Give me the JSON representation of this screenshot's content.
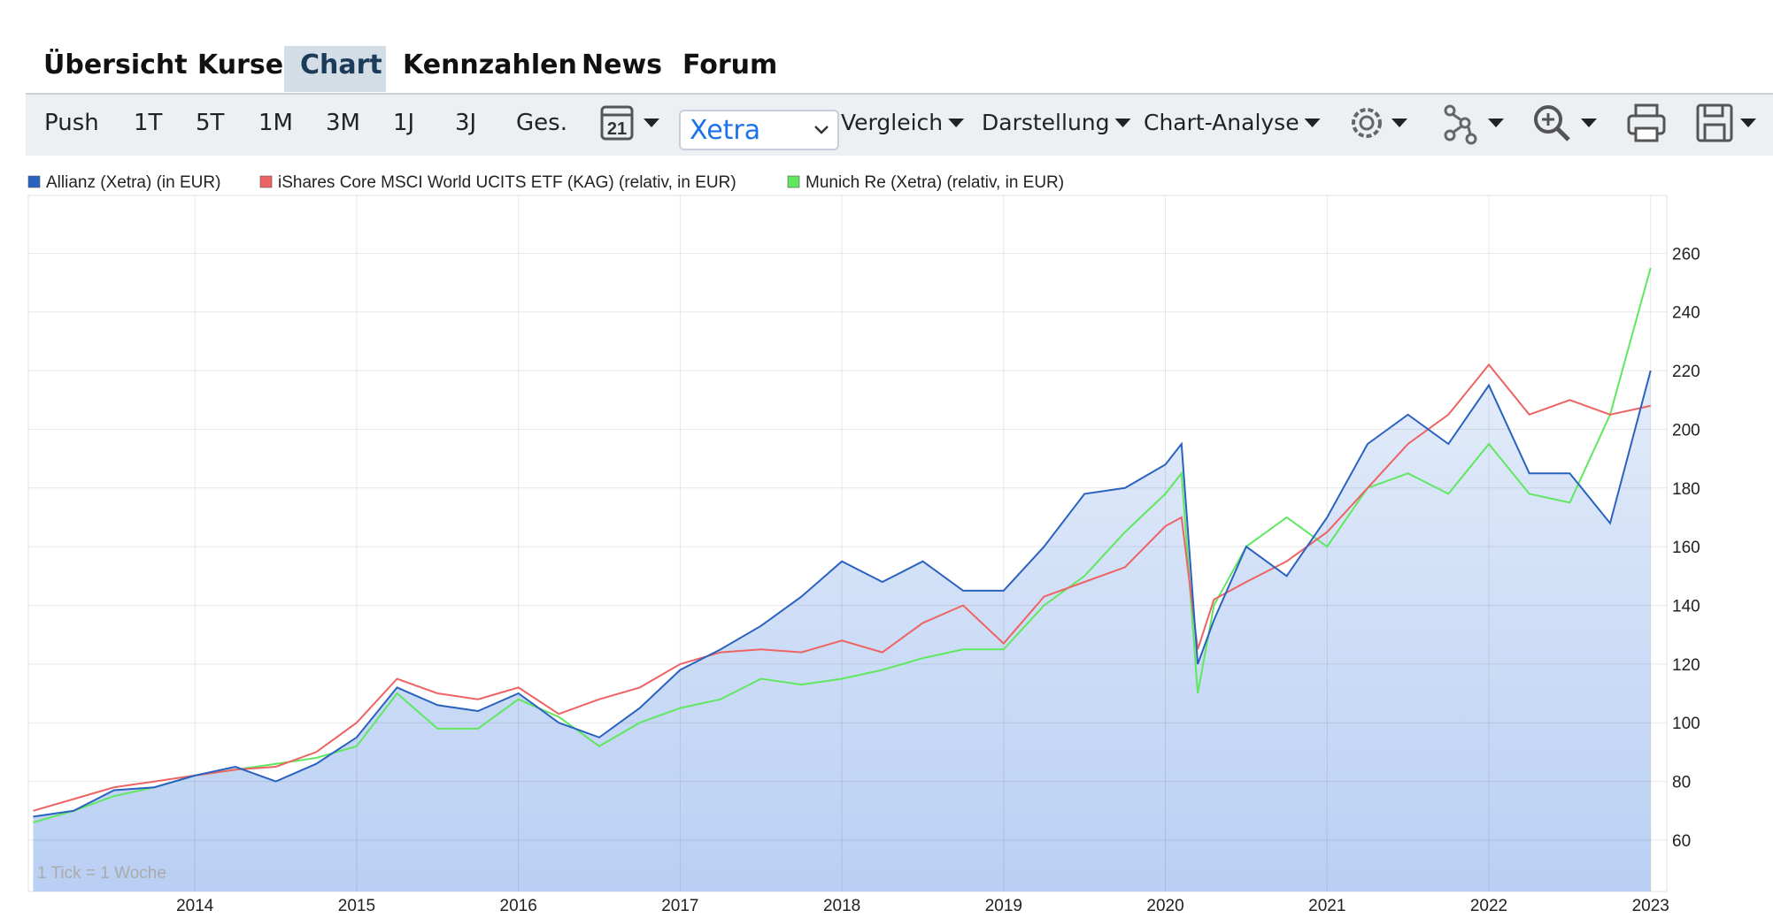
{
  "tabs": {
    "items": [
      "Übersicht",
      "Kurse",
      "Chart",
      "Kennzahlen",
      "News",
      "Forum"
    ],
    "active": 2
  },
  "toolbar": {
    "ranges": [
      "Push",
      "1T",
      "5T",
      "1M",
      "3M",
      "1J",
      "3J",
      "Ges."
    ],
    "calendar": "21",
    "exchange": "Xetra",
    "menus": [
      "Vergleich",
      "Darstellung",
      "Chart-Analyse"
    ]
  },
  "chart_data": {
    "type": "line",
    "note": "1 Tick = 1 Woche",
    "x": [
      2013,
      2013.25,
      2013.5,
      2013.75,
      2014,
      2014.25,
      2014.5,
      2014.75,
      2015,
      2015.25,
      2015.5,
      2015.75,
      2016,
      2016.25,
      2016.5,
      2016.75,
      2017,
      2017.25,
      2017.5,
      2017.75,
      2018,
      2018.25,
      2018.5,
      2018.75,
      2019,
      2019.25,
      2019.5,
      2019.75,
      2020,
      2020.1,
      2020.2,
      2020.3,
      2020.5,
      2020.75,
      2021,
      2021.25,
      2021.5,
      2021.75,
      2022,
      2022.25,
      2022.5,
      2022.75,
      2023
    ],
    "series": [
      {
        "name": "Allianz (Xetra) (in EUR)",
        "color": "#2a62c0",
        "area": true,
        "values": [
          68,
          70,
          77,
          78,
          82,
          85,
          80,
          86,
          95,
          112,
          106,
          104,
          110,
          100,
          95,
          105,
          118,
          125,
          133,
          143,
          155,
          148,
          155,
          145,
          145,
          160,
          178,
          180,
          188,
          195,
          120,
          135,
          160,
          150,
          170,
          195,
          205,
          195,
          215,
          185,
          185,
          168,
          220
        ]
      },
      {
        "name": "iShares Core MSCI World UCITS ETF (KAG) (relativ, in EUR)",
        "color": "#ee6363",
        "values": [
          70,
          74,
          78,
          80,
          82,
          84,
          85,
          90,
          100,
          115,
          110,
          108,
          112,
          103,
          108,
          112,
          120,
          124,
          125,
          124,
          128,
          124,
          134,
          140,
          127,
          143,
          148,
          153,
          167,
          170,
          125,
          142,
          148,
          155,
          165,
          180,
          195,
          205,
          222,
          205,
          210,
          205,
          208
        ]
      },
      {
        "name": "Munich Re (Xetra) (relativ, in EUR)",
        "color": "#5fe85f",
        "values": [
          66,
          70,
          75,
          78,
          82,
          84,
          86,
          88,
          92,
          110,
          98,
          98,
          108,
          102,
          92,
          100,
          105,
          108,
          115,
          113,
          115,
          118,
          122,
          125,
          125,
          140,
          150,
          165,
          178,
          185,
          110,
          140,
          160,
          170,
          160,
          180,
          185,
          178,
          195,
          178,
          175,
          205,
          255
        ]
      }
    ],
    "xlim": [
      2012.97,
      2023.1
    ],
    "xticks": [
      2014,
      2015,
      2016,
      2017,
      2018,
      2019,
      2020,
      2021,
      2022,
      2023
    ],
    "ylim": [
      42.5,
      279.7
    ],
    "yticks": [
      60,
      80,
      100,
      120,
      140,
      160,
      180,
      200,
      220,
      240,
      260
    ],
    "grid": true
  }
}
